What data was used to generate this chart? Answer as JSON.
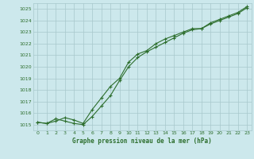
{
  "title": "Graphe pression niveau de la mer (hPa)",
  "background_color": "#cce8ec",
  "grid_color": "#a8c8cc",
  "line_color": "#2d6e2d",
  "marker_color": "#2d6e2d",
  "xlim": [
    -0.5,
    23.5
  ],
  "ylim": [
    1014.5,
    1025.5
  ],
  "yticks": [
    1015,
    1016,
    1017,
    1018,
    1019,
    1020,
    1021,
    1022,
    1023,
    1024,
    1025
  ],
  "xticks": [
    0,
    1,
    2,
    3,
    4,
    5,
    6,
    7,
    8,
    9,
    10,
    11,
    12,
    13,
    14,
    15,
    16,
    17,
    18,
    19,
    20,
    21,
    22,
    23
  ],
  "series1_x": [
    0,
    1,
    2,
    3,
    4,
    5,
    6,
    7,
    8,
    9,
    10,
    11,
    12,
    13,
    14,
    15,
    16,
    17,
    18,
    19,
    20,
    21,
    22,
    23
  ],
  "series1_y": [
    1015.2,
    1015.1,
    1015.5,
    1015.3,
    1015.1,
    1015.0,
    1015.7,
    1016.6,
    1017.5,
    1018.8,
    1020.0,
    1020.8,
    1021.3,
    1021.7,
    1022.1,
    1022.5,
    1022.9,
    1023.2,
    1023.3,
    1023.7,
    1024.0,
    1024.3,
    1024.6,
    1025.1
  ],
  "series2_x": [
    0,
    1,
    2,
    3,
    4,
    5,
    6,
    7,
    8,
    9,
    10,
    11,
    12,
    13,
    14,
    15,
    16,
    17,
    18,
    19,
    20,
    21,
    22,
    23
  ],
  "series2_y": [
    1015.2,
    1015.1,
    1015.3,
    1015.6,
    1015.4,
    1015.1,
    1016.3,
    1017.3,
    1018.3,
    1019.0,
    1020.4,
    1021.1,
    1021.4,
    1022.0,
    1022.4,
    1022.7,
    1023.0,
    1023.3,
    1023.3,
    1023.8,
    1024.1,
    1024.4,
    1024.7,
    1025.2
  ]
}
